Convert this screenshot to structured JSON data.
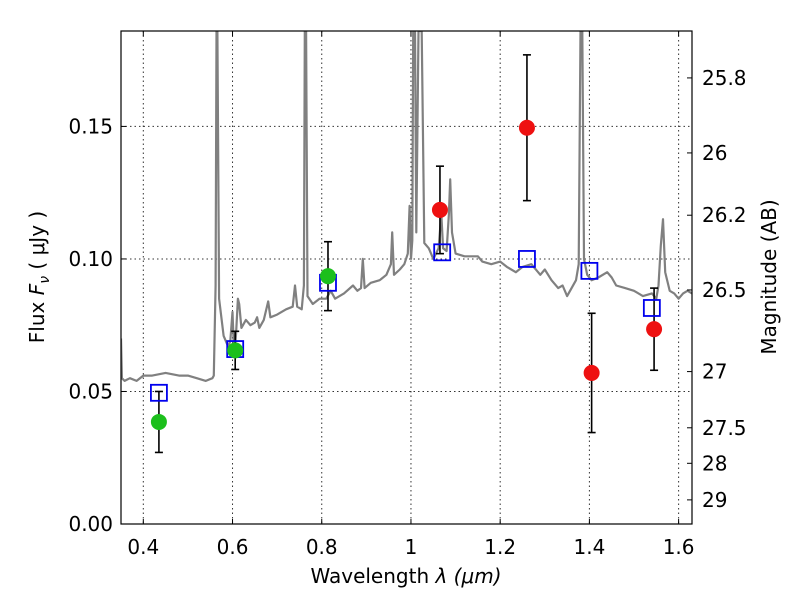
{
  "chart_data": {
    "type": "scatter",
    "title": "",
    "xlabel_prefix": "Wavelength  ",
    "xlabel_math": "λ (μm)",
    "ylabel_left_prefix": "Flux  ",
    "ylabel_left_math": "F",
    "ylabel_left_sub": "ν",
    "ylabel_left_unit": "  ( μJy )",
    "ylabel_right": "Magnitude (AB)",
    "xlim": [
      0.35,
      1.63
    ],
    "ylim": [
      0.0,
      0.186
    ],
    "grid": true,
    "x_ticks": [
      {
        "value": 0.4,
        "label": "0.4"
      },
      {
        "value": 0.6,
        "label": "0.6"
      },
      {
        "value": 0.8,
        "label": "0.8"
      },
      {
        "value": 1.0,
        "label": "1"
      },
      {
        "value": 1.2,
        "label": "1.2"
      },
      {
        "value": 1.4,
        "label": "1.4"
      },
      {
        "value": 1.6,
        "label": "1.6"
      }
    ],
    "y_ticks": [
      {
        "value": 0.0,
        "label": "0.00"
      },
      {
        "value": 0.05,
        "label": "0.05"
      },
      {
        "value": 0.1,
        "label": "0.10"
      },
      {
        "value": 0.15,
        "label": "0.15"
      }
    ],
    "right_ticks": [
      {
        "label": "25.8",
        "flux": 0.1683
      },
      {
        "label": "26",
        "flux": 0.14
      },
      {
        "label": "26.2",
        "flux": 0.1165
      },
      {
        "label": "26.5",
        "flux": 0.0883
      },
      {
        "label": "27",
        "flux": 0.0575
      },
      {
        "label": "27.5",
        "flux": 0.0363
      },
      {
        "label": "28",
        "flux": 0.0229
      },
      {
        "label": "29",
        "flux": 0.0091
      }
    ],
    "colors": {
      "green_points": "#1cbf1c",
      "red_points": "#ee1111",
      "model_squares": "#0000ee",
      "spectrum": "#808080",
      "errorbars": "#000000"
    },
    "series": [
      {
        "marker": "circle",
        "color": "green",
        "points": [
          {
            "x": 0.435,
            "y": 0.0385,
            "err": 0.0115
          },
          {
            "x": 0.606,
            "y": 0.0655,
            "err": 0.0072
          },
          {
            "x": 0.814,
            "y": 0.0935,
            "err": 0.013
          }
        ]
      },
      {
        "marker": "circle",
        "color": "red",
        "points": [
          {
            "x": 1.065,
            "y": 0.1185,
            "err": 0.0165
          },
          {
            "x": 1.26,
            "y": 0.1495,
            "err": 0.0275
          },
          {
            "x": 1.405,
            "y": 0.057,
            "err": 0.0225
          },
          {
            "x": 1.545,
            "y": 0.0735,
            "err": 0.0155
          }
        ]
      },
      {
        "marker": "square",
        "color": "blue",
        "points": [
          {
            "x": 0.435,
            "y": 0.0495
          },
          {
            "x": 0.606,
            "y": 0.066
          },
          {
            "x": 0.814,
            "y": 0.091
          },
          {
            "x": 1.07,
            "y": 0.1025
          },
          {
            "x": 1.26,
            "y": 0.1
          },
          {
            "x": 1.4,
            "y": 0.0955
          },
          {
            "x": 1.54,
            "y": 0.0815
          }
        ]
      }
    ],
    "spectrum": [
      [
        0.35,
        0.07
      ],
      [
        0.352,
        0.055
      ],
      [
        0.358,
        0.054
      ],
      [
        0.37,
        0.055
      ],
      [
        0.385,
        0.054
      ],
      [
        0.4,
        0.056
      ],
      [
        0.42,
        0.056
      ],
      [
        0.45,
        0.057
      ],
      [
        0.48,
        0.056
      ],
      [
        0.5,
        0.056
      ],
      [
        0.52,
        0.055
      ],
      [
        0.54,
        0.054
      ],
      [
        0.555,
        0.055
      ],
      [
        0.558,
        0.056
      ],
      [
        0.562,
        0.09
      ],
      [
        0.564,
        0.186
      ],
      [
        0.566,
        0.186
      ],
      [
        0.57,
        0.085
      ],
      [
        0.58,
        0.071
      ],
      [
        0.59,
        0.067
      ],
      [
        0.595,
        0.069
      ],
      [
        0.6,
        0.08
      ],
      [
        0.603,
        0.066
      ],
      [
        0.606,
        0.067
      ],
      [
        0.608,
        0.072
      ],
      [
        0.612,
        0.085
      ],
      [
        0.615,
        0.083
      ],
      [
        0.62,
        0.074
      ],
      [
        0.63,
        0.077
      ],
      [
        0.64,
        0.075
      ],
      [
        0.65,
        0.076
      ],
      [
        0.655,
        0.078
      ],
      [
        0.66,
        0.074
      ],
      [
        0.67,
        0.077
      ],
      [
        0.68,
        0.084
      ],
      [
        0.685,
        0.078
      ],
      [
        0.7,
        0.079
      ],
      [
        0.72,
        0.081
      ],
      [
        0.735,
        0.082
      ],
      [
        0.74,
        0.09
      ],
      [
        0.745,
        0.082
      ],
      [
        0.755,
        0.081
      ],
      [
        0.76,
        0.09
      ],
      [
        0.762,
        0.186
      ],
      [
        0.765,
        0.186
      ],
      [
        0.768,
        0.086
      ],
      [
        0.78,
        0.083
      ],
      [
        0.795,
        0.085
      ],
      [
        0.81,
        0.085
      ],
      [
        0.82,
        0.088
      ],
      [
        0.83,
        0.085
      ],
      [
        0.85,
        0.087
      ],
      [
        0.87,
        0.09
      ],
      [
        0.88,
        0.088
      ],
      [
        0.888,
        0.089
      ],
      [
        0.892,
        0.1
      ],
      [
        0.896,
        0.089
      ],
      [
        0.91,
        0.091
      ],
      [
        0.93,
        0.092
      ],
      [
        0.945,
        0.094
      ],
      [
        0.955,
        0.098
      ],
      [
        0.958,
        0.11
      ],
      [
        0.962,
        0.094
      ],
      [
        0.975,
        0.096
      ],
      [
        0.985,
        0.098
      ],
      [
        0.993,
        0.102
      ],
      [
        0.997,
        0.12
      ],
      [
        1.0,
        0.1
      ],
      [
        1.003,
        0.107
      ],
      [
        1.005,
        0.186
      ],
      [
        1.009,
        0.186
      ],
      [
        1.012,
        0.11
      ],
      [
        1.017,
        0.186
      ],
      [
        1.024,
        0.186
      ],
      [
        1.03,
        0.106
      ],
      [
        1.04,
        0.104
      ],
      [
        1.05,
        0.1
      ],
      [
        1.062,
        0.104
      ],
      [
        1.068,
        0.117
      ],
      [
        1.072,
        0.104
      ],
      [
        1.08,
        0.103
      ],
      [
        1.085,
        0.117
      ],
      [
        1.088,
        0.13
      ],
      [
        1.092,
        0.11
      ],
      [
        1.1,
        0.102
      ],
      [
        1.12,
        0.101
      ],
      [
        1.15,
        0.101
      ],
      [
        1.16,
        0.099
      ],
      [
        1.18,
        0.098
      ],
      [
        1.2,
        0.099
      ],
      [
        1.215,
        0.097
      ],
      [
        1.235,
        0.095
      ],
      [
        1.25,
        0.097
      ],
      [
        1.27,
        0.098
      ],
      [
        1.29,
        0.094
      ],
      [
        1.3,
        0.096
      ],
      [
        1.315,
        0.092
      ],
      [
        1.33,
        0.089
      ],
      [
        1.34,
        0.09
      ],
      [
        1.35,
        0.086
      ],
      [
        1.36,
        0.089
      ],
      [
        1.37,
        0.092
      ],
      [
        1.376,
        0.098
      ],
      [
        1.38,
        0.186
      ],
      [
        1.384,
        0.186
      ],
      [
        1.388,
        0.1
      ],
      [
        1.395,
        0.094
      ],
      [
        1.405,
        0.092
      ],
      [
        1.42,
        0.093
      ],
      [
        1.44,
        0.095
      ],
      [
        1.45,
        0.093
      ],
      [
        1.46,
        0.09
      ],
      [
        1.48,
        0.089
      ],
      [
        1.5,
        0.088
      ],
      [
        1.52,
        0.086
      ],
      [
        1.54,
        0.087
      ],
      [
        1.55,
        0.085
      ],
      [
        1.555,
        0.09
      ],
      [
        1.56,
        0.105
      ],
      [
        1.565,
        0.115
      ],
      [
        1.57,
        0.095
      ],
      [
        1.58,
        0.088
      ],
      [
        1.59,
        0.087
      ],
      [
        1.6,
        0.085
      ],
      [
        1.61,
        0.087
      ],
      [
        1.62,
        0.088
      ],
      [
        1.63,
        0.087
      ]
    ]
  }
}
